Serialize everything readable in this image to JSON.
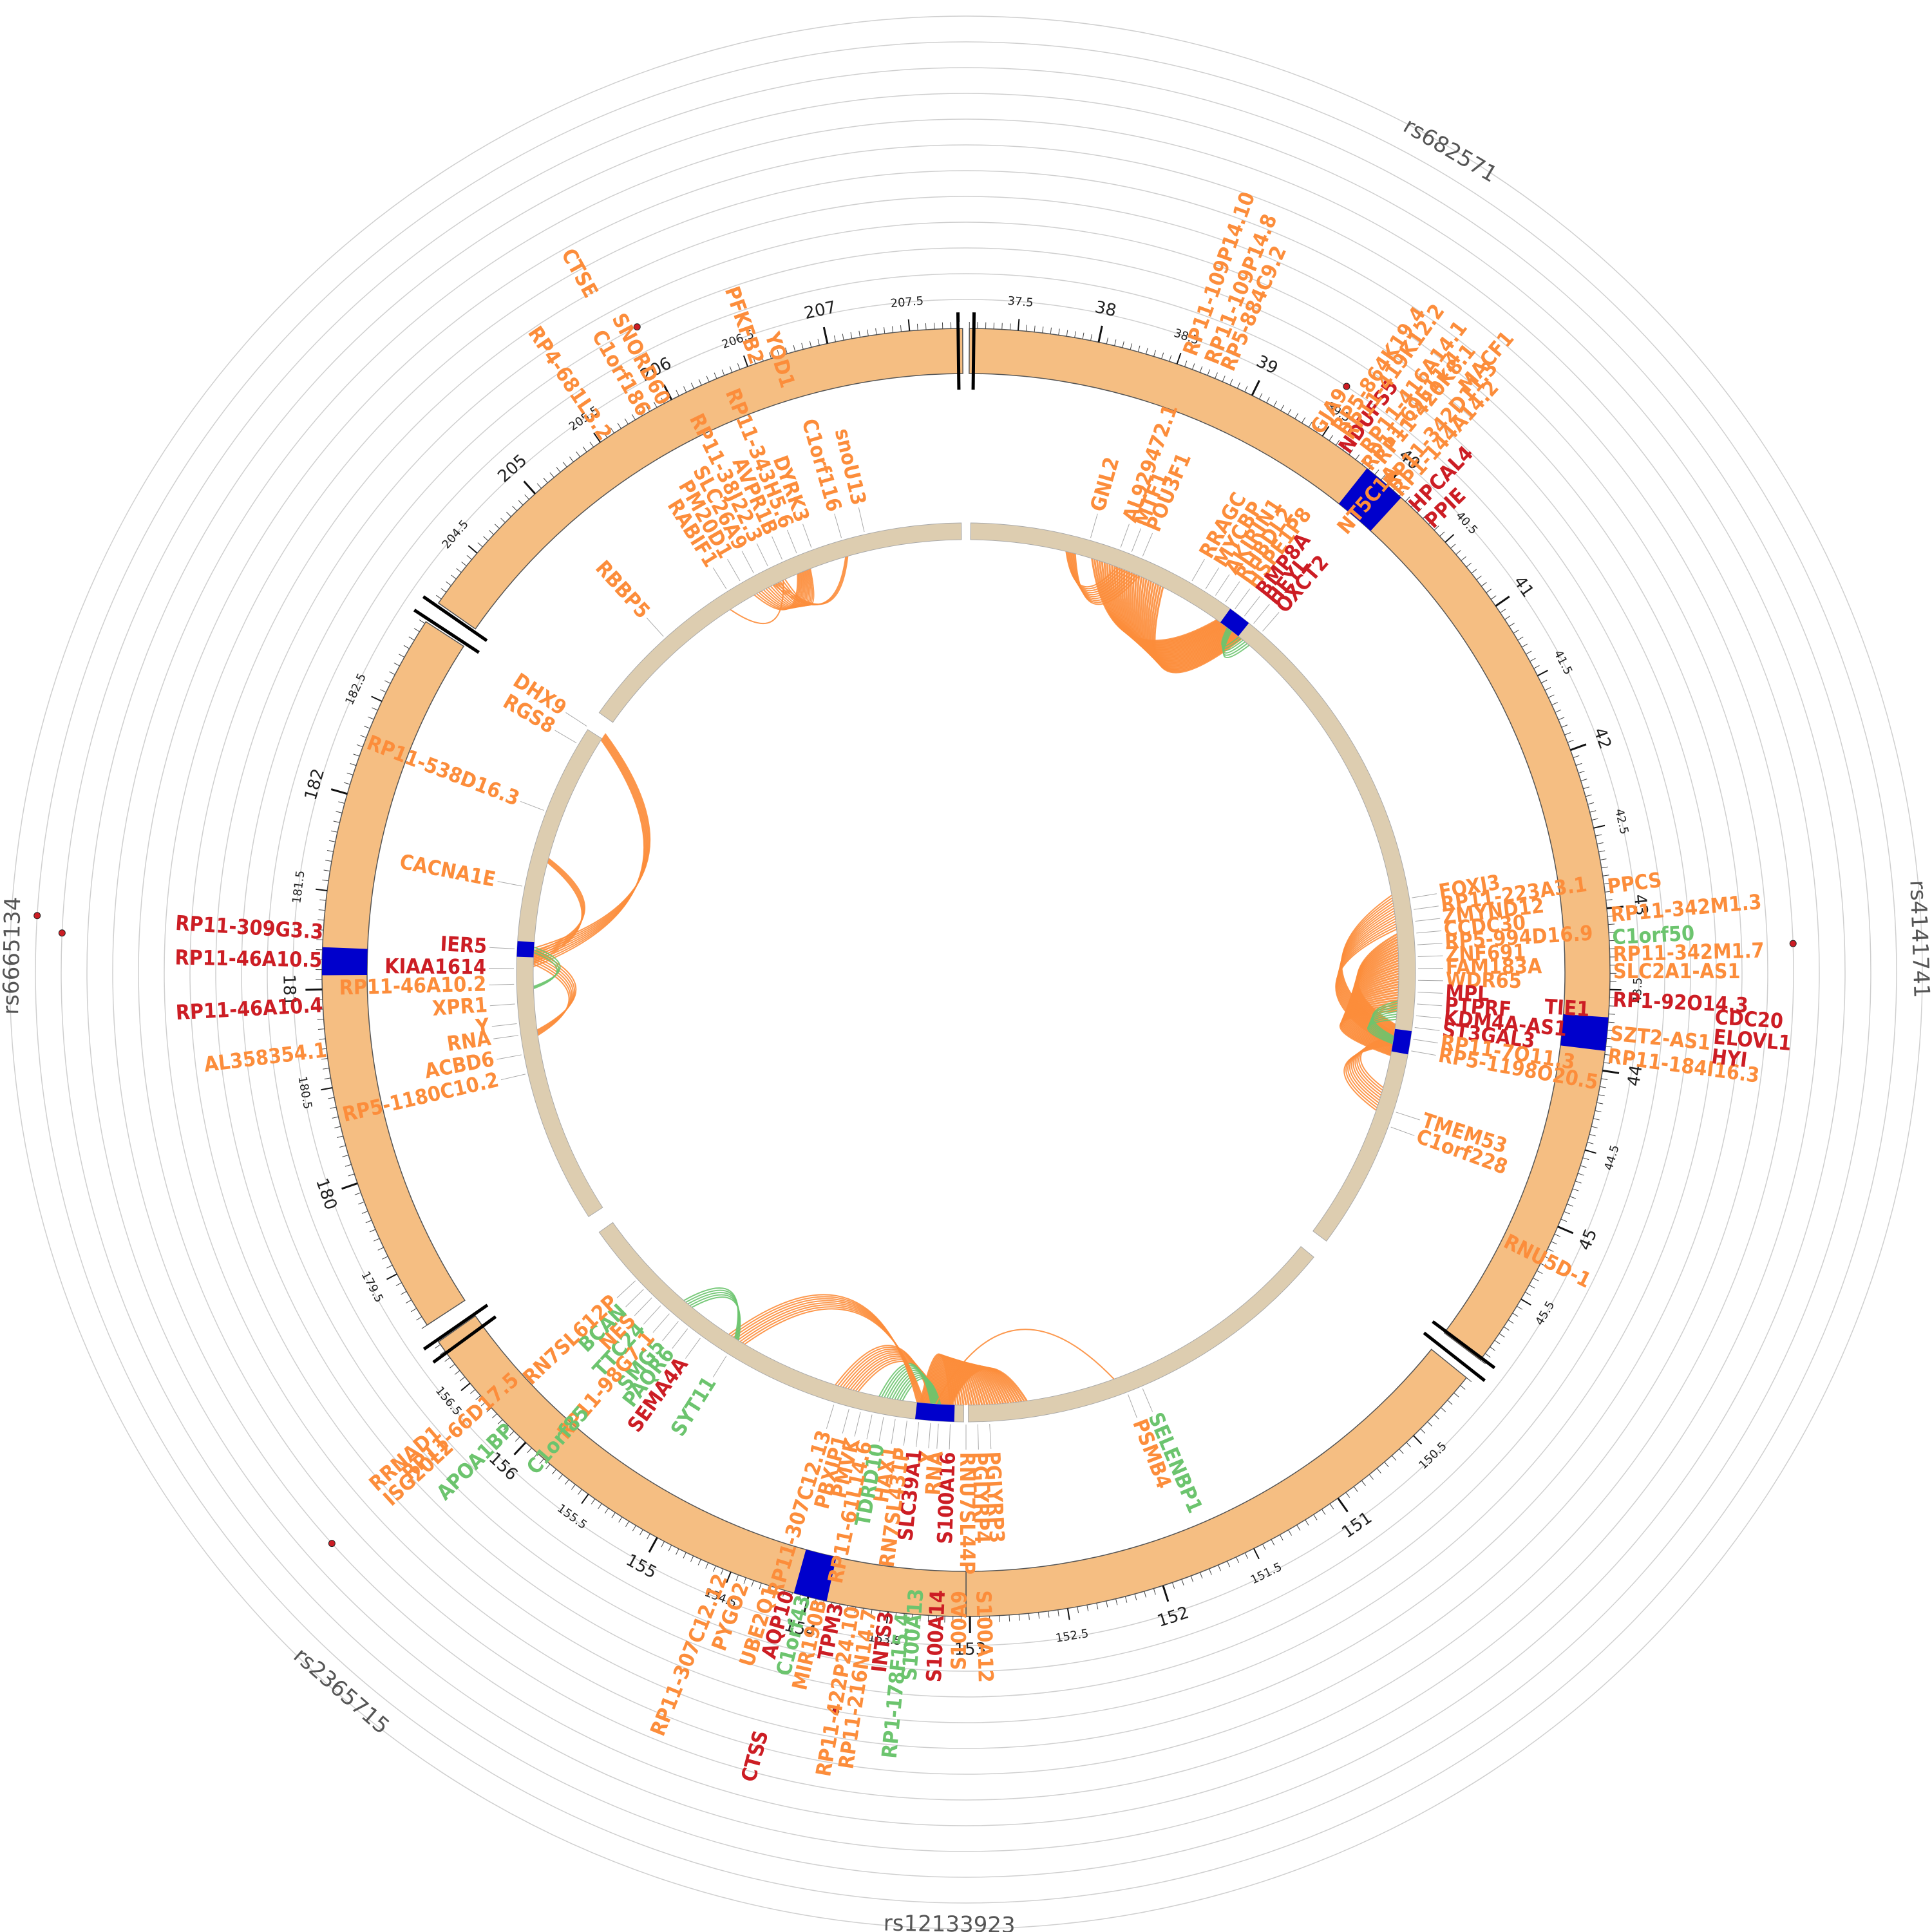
{
  "colors": {
    "track": "#f5be82",
    "inner_track": "#ddcdb0",
    "focus": "#0000cc",
    "orange": "#fc8d3b",
    "green": "#6cc46e",
    "red": "#cc1d24",
    "dot": "#cc1d24",
    "grid": "#cfcfcf"
  },
  "snp_labels": [
    {
      "label": "rs682571",
      "angle": 30.5
    },
    {
      "label": "rs4141741",
      "angle": 88
    },
    {
      "label": "rs12133923",
      "angle": 181
    },
    {
      "label": "rs2365715",
      "angle": 221
    },
    {
      "label": "rs6665134",
      "angle": 271
    }
  ],
  "snp_dots": [
    {
      "angle": 33,
      "ring": 1
    },
    {
      "angle": 88,
      "ring": 6
    },
    {
      "angle": 190,
      "ring": 3
    },
    {
      "angle": 228,
      "ring": 7
    },
    {
      "angle": 272.5,
      "ring": 9
    },
    {
      "angle": 273.5,
      "ring": 10
    },
    {
      "angle": 333,
      "ring": 2
    }
  ],
  "segments": [
    {
      "name": "chr1-a",
      "start_angle": 0.3,
      "end_angle": 127,
      "pos_start": 37.2,
      "pos_end": 45.95,
      "ticks": [
        "37.5",
        "38",
        "38.5",
        "39",
        "39.5",
        "40",
        "40.5",
        "41",
        "41.5",
        "42",
        "42.5",
        "43",
        "43.5",
        "44",
        "44.5",
        "45",
        "45.5"
      ]
    },
    {
      "name": "chr1-b",
      "start_angle": 129,
      "end_angle": 180,
      "pos_start": 150.1,
      "pos_end": 153.02,
      "ticks": [
        "150.5",
        "151",
        "151.5",
        "152",
        "152.5",
        "153"
      ]
    },
    {
      "name": "chr1-c",
      "start_angle": 180,
      "end_angle": 235,
      "pos_start": 153.02,
      "pos_end": 156.82,
      "ticks": [
        "153.5",
        "154",
        "154.5",
        "155",
        "155.5",
        "156",
        "156.5"
      ]
    },
    {
      "name": "chr1-d",
      "start_angle": 236.8,
      "end_angle": 303,
      "pos_start": 179.2,
      "pos_end": 182.96,
      "ticks": [
        "179.5",
        "180",
        "180.5",
        "181",
        "181.5",
        "182",
        "182.5"
      ]
    },
    {
      "name": "chr1-e",
      "start_angle": 305,
      "end_angle": 359.7,
      "pos_start": 204.12,
      "pos_end": 207.82,
      "ticks": [
        "204.5",
        "205",
        "205.5",
        "206",
        "206.5",
        "207",
        "207.5"
      ]
    }
  ],
  "focus_blocks": [
    {
      "angle": 40.5,
      "width": 4
    },
    {
      "angle": 95.5,
      "width": 3
    },
    {
      "angle": 194,
      "width": 3
    },
    {
      "angle": 271,
      "width": 2.5
    }
  ],
  "inner_focus": [
    {
      "angle": 37.5,
      "width": 3
    },
    {
      "angle": 99,
      "width": 3
    },
    {
      "angle": 184,
      "width": 5
    },
    {
      "angle": 273,
      "width": 2
    }
  ],
  "gene_labels": [
    {
      "text": "GNL2",
      "angle": 16,
      "radius": 745,
      "color": "orange",
      "side": "out"
    },
    {
      "text": "AL929472.1",
      "angle": 20,
      "radius": 745,
      "color": "orange"
    },
    {
      "text": "MTF1",
      "angle": 21.5,
      "radius": 745,
      "color": "orange"
    },
    {
      "text": "POU3F1",
      "angle": 23,
      "radius": 745,
      "color": "orange"
    },
    {
      "text": "RRAGC",
      "angle": 30,
      "radius": 745,
      "color": "orange"
    },
    {
      "text": "MYCBP",
      "angle": 32,
      "radius": 745,
      "color": "orange"
    },
    {
      "text": "AKIRIN1",
      "angle": 33.5,
      "radius": 745,
      "color": "orange"
    },
    {
      "text": "RHBDL2",
      "angle": 35,
      "radius": 745,
      "color": "orange"
    },
    {
      "text": "HSPE1P8",
      "angle": 36.5,
      "radius": 745,
      "color": "orange"
    },
    {
      "text": "BMP8A",
      "angle": 38,
      "radius": 745,
      "color": "red"
    },
    {
      "text": "HEYL",
      "angle": 39.5,
      "radius": 745,
      "color": "red"
    },
    {
      "text": "OXCT2",
      "angle": 41,
      "radius": 745,
      "color": "red"
    },
    {
      "text": "NDUFS5",
      "angle": 36,
      "radius": 1000,
      "color": "red"
    },
    {
      "text": "HPCAL4",
      "angle": 44,
      "radius": 1000,
      "color": "red"
    },
    {
      "text": "PPIE",
      "angle": 46,
      "radius": 1000,
      "color": "red"
    },
    {
      "text": "MACF1",
      "angle": 40.5,
      "radius": 1190,
      "color": "orange"
    },
    {
      "text": "FOXJ3",
      "angle": 80.5,
      "radius": 745,
      "color": "orange"
    },
    {
      "text": "RP11-223A3.1",
      "angle": 82,
      "radius": 745,
      "color": "orange"
    },
    {
      "text": "ZMYND12",
      "angle": 83.5,
      "radius": 745,
      "color": "orange"
    },
    {
      "text": "CCDC30",
      "angle": 85,
      "radius": 745,
      "color": "orange"
    },
    {
      "text": "RP5-994D16.9",
      "angle": 86.5,
      "radius": 745,
      "color": "orange"
    },
    {
      "text": "ZNF691",
      "angle": 88,
      "radius": 745,
      "color": "orange"
    },
    {
      "text": "FAM183A",
      "angle": 89.5,
      "radius": 745,
      "color": "orange"
    },
    {
      "text": "WDR65",
      "angle": 91,
      "radius": 745,
      "color": "orange"
    },
    {
      "text": "MPL",
      "angle": 92.5,
      "radius": 745,
      "color": "red"
    },
    {
      "text": "TIE1",
      "angle": 93.5,
      "radius": 900,
      "color": "red"
    },
    {
      "text": "PTPRF",
      "angle": 94,
      "radius": 745,
      "color": "red"
    },
    {
      "text": "KDM4A-AS1",
      "angle": 95.5,
      "radius": 745,
      "color": "red"
    },
    {
      "text": "ST3GAL3",
      "angle": 97,
      "radius": 745,
      "color": "red"
    },
    {
      "text": "RP11-7O11.3",
      "angle": 98.5,
      "radius": 745,
      "color": "orange"
    },
    {
      "text": "RP5-1198O20.5",
      "angle": 100,
      "radius": 745,
      "color": "orange"
    },
    {
      "text": "PPCS",
      "angle": 82.5,
      "radius": 1005,
      "color": "orange"
    },
    {
      "text": "RP11-342M1.3",
      "angle": 85,
      "radius": 1005,
      "color": "orange"
    },
    {
      "text": "C1orf50",
      "angle": 87,
      "radius": 1005,
      "color": "green"
    },
    {
      "text": "RP11-342M1.7",
      "angle": 88.5,
      "radius": 1005,
      "color": "orange"
    },
    {
      "text": "SLC2A1-AS1",
      "angle": 90,
      "radius": 1005,
      "color": "orange"
    },
    {
      "text": "RP1-92O14.3",
      "angle": 92.5,
      "radius": 1005,
      "color": "red"
    },
    {
      "text": "SZT2-AS1",
      "angle": 95.5,
      "radius": 1005,
      "color": "orange"
    },
    {
      "text": "RP11-184I16.3",
      "angle": 97.5,
      "radius": 1005,
      "color": "orange"
    },
    {
      "text": "CDC20",
      "angle": 93.5,
      "radius": 1165,
      "color": "red"
    },
    {
      "text": "ELOVL1",
      "angle": 95,
      "radius": 1165,
      "color": "red"
    },
    {
      "text": "HYI",
      "angle": 96.5,
      "radius": 1165,
      "color": "red"
    },
    {
      "text": "TMEM53",
      "angle": 108,
      "radius": 745,
      "color": "orange"
    },
    {
      "text": "C1orf228",
      "angle": 110,
      "radius": 745,
      "color": "orange"
    },
    {
      "text": "RNU5D-1",
      "angle": 116.5,
      "radius": 935,
      "color": "orange"
    },
    {
      "text": "SELENBP1",
      "angle": 157,
      "radius": 745,
      "color": "green"
    },
    {
      "text": "PSMB4",
      "angle": 159,
      "radius": 745,
      "color": "orange"
    },
    {
      "text": "PGLYRP3",
      "angle": 177,
      "radius": 745,
      "color": "orange"
    },
    {
      "text": "PGLYRP4",
      "angle": 178.5,
      "radius": 745,
      "color": "orange"
    },
    {
      "text": "RNU7SL44P",
      "angle": 180,
      "radius": 745,
      "color": "orange"
    },
    {
      "text": "S100A16",
      "angle": 182,
      "radius": 745,
      "color": "red"
    },
    {
      "text": "RNA",
      "angle": 183.5,
      "radius": 745,
      "color": "orange"
    },
    {
      "text": "Y",
      "angle": 184.5,
      "radius": 745,
      "color": "orange"
    },
    {
      "text": "SLC39A1",
      "angle": 186,
      "radius": 745,
      "color": "red"
    },
    {
      "text": "RN7SL431P",
      "angle": 187.5,
      "radius": 745,
      "color": "orange"
    },
    {
      "text": "HAX1",
      "angle": 189,
      "radius": 745,
      "color": "orange"
    },
    {
      "text": "TDRD10",
      "angle": 190.5,
      "radius": 745,
      "color": "green"
    },
    {
      "text": "RP11-61L14.6",
      "angle": 192,
      "radius": 745,
      "color": "orange"
    },
    {
      "text": "PMVK",
      "angle": 193.5,
      "radius": 745,
      "color": "orange"
    },
    {
      "text": "PBXIP1",
      "angle": 195,
      "radius": 745,
      "color": "orange"
    },
    {
      "text": "RP11-307C12.13",
      "angle": 197,
      "radius": 745,
      "color": "orange"
    },
    {
      "text": "S100A12",
      "angle": 178.5,
      "radius": 960,
      "color": "orange"
    },
    {
      "text": "S100A9",
      "angle": 180.5,
      "radius": 960,
      "color": "orange"
    },
    {
      "text": "S100A14",
      "angle": 182.5,
      "radius": 960,
      "color": "red"
    },
    {
      "text": "S100A13",
      "angle": 184.5,
      "radius": 960,
      "color": "green"
    },
    {
      "text": "RP1-178F15.4",
      "angle": 185.5,
      "radius": 1000,
      "color": "green"
    },
    {
      "text": "INTS3",
      "angle": 187,
      "radius": 1000,
      "color": "red"
    },
    {
      "text": "RP11-216N14.7",
      "angle": 188.5,
      "radius": 1000,
      "color": "orange"
    },
    {
      "text": "RP11-422P24.10",
      "angle": 190,
      "radius": 1000,
      "color": "orange"
    },
    {
      "text": "TPM3",
      "angle": 191.5,
      "radius": 1000,
      "color": "red"
    },
    {
      "text": "MIR190B",
      "angle": 193,
      "radius": 1000,
      "color": "orange"
    },
    {
      "text": "C1orf43",
      "angle": 194.5,
      "radius": 1000,
      "color": "green"
    },
    {
      "text": "AQP10",
      "angle": 196,
      "radius": 1000,
      "color": "red"
    },
    {
      "text": "UBE2Q1",
      "angle": 197.5,
      "radius": 1000,
      "color": "orange"
    },
    {
      "text": "CTSS",
      "angle": 195,
      "radius": 1220,
      "color": "red"
    },
    {
      "text": "RP11-307C12.12",
      "angle": 202,
      "radius": 1010,
      "color": "orange"
    },
    {
      "text": "PYGO2",
      "angle": 200,
      "radius": 1010,
      "color": "orange"
    },
    {
      "text": "SYT11",
      "angle": 212,
      "radius": 745,
      "color": "green"
    },
    {
      "text": "SEMA4A",
      "angle": 216,
      "radius": 745,
      "color": "red"
    },
    {
      "text": "PAQR6",
      "angle": 218,
      "radius": 745,
      "color": "green"
    },
    {
      "text": "SMG5",
      "angle": 219.5,
      "radius": 745,
      "color": "green"
    },
    {
      "text": "RP11-98G7.1",
      "angle": 221,
      "radius": 745,
      "color": "orange"
    },
    {
      "text": "TTC24",
      "angle": 222.5,
      "radius": 745,
      "color": "green"
    },
    {
      "text": "NES",
      "angle": 224,
      "radius": 745,
      "color": "orange"
    },
    {
      "text": "BCAN",
      "angle": 225.5,
      "radius": 745,
      "color": "green"
    },
    {
      "text": "RN7SL612P",
      "angle": 227,
      "radius": 745,
      "color": "orange"
    },
    {
      "text": "C1orf85",
      "angle": 221,
      "radius": 900,
      "color": "green"
    },
    {
      "text": "APOA1BP",
      "angle": 225,
      "radius": 1000,
      "color": "green"
    },
    {
      "text": "RP11-66D17.5",
      "angle": 228,
      "radius": 940,
      "color": "orange"
    },
    {
      "text": "RRNAD1",
      "angle": 229,
      "radius": 1085,
      "color": "orange"
    },
    {
      "text": "ISG20L2",
      "angle": 227.5,
      "radius": 1085,
      "color": "orange"
    },
    {
      "text": "RP5-1180C10.2",
      "angle": 257,
      "radius": 745,
      "color": "orange"
    },
    {
      "text": "ACBD6",
      "angle": 259.5,
      "radius": 745,
      "color": "orange"
    },
    {
      "text": "RNA",
      "angle": 262,
      "radius": 745,
      "color": "orange"
    },
    {
      "text": "Y",
      "angle": 263.5,
      "radius": 745,
      "color": "orange"
    },
    {
      "text": "XPR1",
      "angle": 266,
      "radius": 745,
      "color": "orange"
    },
    {
      "text": "RP11-46A10.2",
      "angle": 268.5,
      "radius": 745,
      "color": "orange"
    },
    {
      "text": "KIAA1614",
      "angle": 270.5,
      "radius": 745,
      "color": "red"
    },
    {
      "text": "IER5",
      "angle": 273,
      "radius": 745,
      "color": "red"
    },
    {
      "text": "CACNA1E",
      "angle": 281,
      "radius": 745,
      "color": "orange"
    },
    {
      "text": "RP11-538D16.3",
      "angle": 291,
      "radius": 745,
      "color": "orange"
    },
    {
      "text": "RGS8",
      "angle": 300.5,
      "radius": 745,
      "color": "orange"
    },
    {
      "text": "DHX9",
      "angle": 303,
      "radius": 745,
      "color": "orange"
    },
    {
      "text": "AL358354.1",
      "angle": 263,
      "radius": 1000,
      "color": "orange"
    },
    {
      "text": "RP11-46A10.4",
      "angle": 267,
      "radius": 1000,
      "color": "red"
    },
    {
      "text": "RP11-46A10.5",
      "angle": 271,
      "radius": 1000,
      "color": "red"
    },
    {
      "text": "RP11-309G3.3",
      "angle": 273.5,
      "radius": 1000,
      "color": "red"
    },
    {
      "text": "RBBP5",
      "angle": 318,
      "radius": 745,
      "color": "orange"
    },
    {
      "text": "RABIF1",
      "angle": 328,
      "radius": 745,
      "color": "orange"
    },
    {
      "text": "PM20D1",
      "angle": 330,
      "radius": 745,
      "color": "orange"
    },
    {
      "text": "SLC26A9",
      "angle": 332,
      "radius": 745,
      "color": "orange"
    },
    {
      "text": "RP11-38J22.3",
      "angle": 334,
      "radius": 745,
      "color": "orange"
    },
    {
      "text": "AVPR1B",
      "angle": 336,
      "radius": 745,
      "color": "orange"
    },
    {
      "text": "DYRK3",
      "angle": 340,
      "radius": 745,
      "color": "orange"
    },
    {
      "text": "RP11-343H5.6",
      "angle": 338,
      "radius": 745,
      "color": "orange"
    },
    {
      "text": "C1orf116",
      "angle": 344,
      "radius": 745,
      "color": "orange"
    },
    {
      "text": "snoU13",
      "angle": 347,
      "radius": 745,
      "color": "orange"
    },
    {
      "text": "YOD1",
      "angle": 343,
      "radius": 950,
      "color": "orange"
    },
    {
      "text": "PFKFB2",
      "angle": 341,
      "radius": 1000,
      "color": "orange"
    },
    {
      "text": "SNORD60",
      "angle": 332,
      "radius": 1000,
      "color": "orange"
    },
    {
      "text": "C1orf186",
      "angle": 330,
      "radius": 1000,
      "color": "orange"
    },
    {
      "text": "CTSE",
      "angle": 331,
      "radius": 1200,
      "color": "orange"
    },
    {
      "text": "RP4-681L3.2",
      "angle": 326,
      "radius": 1000,
      "color": "orange"
    },
    {
      "text": "RP11-109P14.10",
      "angle": 20,
      "radius": 1020,
      "color": "orange"
    },
    {
      "text": "RP11-109P14.8",
      "angle": 22,
      "radius": 1020,
      "color": "orange"
    },
    {
      "text": "RP5-884C9.2",
      "angle": 23.5,
      "radius": 1020,
      "color": "orange"
    },
    {
      "text": "GJA9",
      "angle": 33,
      "radius": 1000,
      "color": "orange"
    },
    {
      "text": "RP11-419K12.2",
      "angle": 35.5,
      "radius": 1020,
      "color": "orange"
    },
    {
      "text": "RP5-864K19.4",
      "angle": 34.5,
      "radius": 1020,
      "color": "orange"
    },
    {
      "text": "RP11-416A14.1",
      "angle": 37.5,
      "radius": 1020,
      "color": "orange"
    },
    {
      "text": "RP11-420K8.1",
      "angle": 39,
      "radius": 1020,
      "color": "orange"
    },
    {
      "text": "NT5C1A",
      "angle": 40.5,
      "radius": 900,
      "color": "orange"
    },
    {
      "text": "RP1-144A14.2",
      "angle": 42,
      "radius": 1000,
      "color": "orange"
    },
    {
      "text": "RP11-69E11.4",
      "angle": 38.5,
      "radius": 1000,
      "color": "orange"
    },
    {
      "text": "RP11-342D11.3",
      "angle": 41,
      "radius": 1000,
      "color": "orange"
    }
  ],
  "links": [
    {
      "from": 338,
      "to": 333,
      "color": "orange",
      "n": 14
    },
    {
      "from": 344,
      "to": 334,
      "color": "orange",
      "n": 3
    },
    {
      "from": 327,
      "to": 335,
      "color": "orange",
      "n": 1
    },
    {
      "from": 303,
      "to": 272,
      "color": "orange",
      "n": 8
    },
    {
      "from": 285,
      "to": 272,
      "color": "orange",
      "n": 5
    },
    {
      "from": 262,
      "to": 272,
      "color": "orange",
      "n": 6
    },
    {
      "from": 268,
      "to": 273,
      "color": "green",
      "n": 3
    },
    {
      "from": 14,
      "to": 22,
      "color": "orange",
      "n": 10
    },
    {
      "from": 37.5,
      "to": 22,
      "color": "orange",
      "n": 30
    },
    {
      "from": 37.5,
      "to": 40,
      "color": "green",
      "n": 6
    },
    {
      "from": 99,
      "to": 82,
      "color": "orange",
      "n": 14
    },
    {
      "from": 99,
      "to": 107,
      "color": "orange",
      "n": 10
    },
    {
      "from": 99,
      "to": 90,
      "color": "orange",
      "n": 30
    },
    {
      "from": 99,
      "to": 95,
      "color": "green",
      "n": 8
    },
    {
      "from": 184,
      "to": 196,
      "color": "orange",
      "n": 10
    },
    {
      "from": 184,
      "to": 177,
      "color": "orange",
      "n": 30
    },
    {
      "from": 184,
      "to": 190,
      "color": "green",
      "n": 10
    },
    {
      "from": 184,
      "to": 160,
      "color": "orange",
      "n": 1
    },
    {
      "from": 186,
      "to": 212,
      "color": "orange",
      "n": 8
    },
    {
      "from": 212,
      "to": 220,
      "color": "green",
      "n": 5
    }
  ]
}
